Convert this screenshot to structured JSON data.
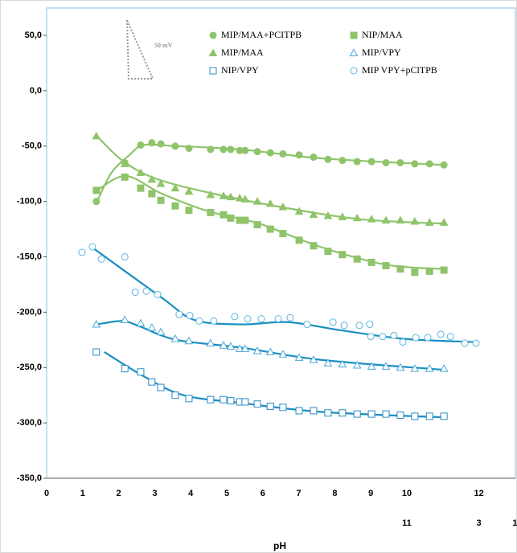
{
  "chart_data": {
    "type": "scatter",
    "x_label": "pH",
    "scale_label": "50 mV",
    "xlim": [
      0,
      13
    ],
    "ylim": [
      -350,
      75
    ],
    "xticks": [
      0,
      1,
      2,
      3,
      4,
      5,
      6,
      7,
      8,
      9,
      10,
      12
    ],
    "xticks_lower": [
      {
        "value": 10,
        "label": "11"
      },
      {
        "value": 12,
        "label": "3"
      },
      {
        "value": 13,
        "label": "1"
      }
    ],
    "yticks": [
      {
        "value": 50,
        "label": "50,0"
      },
      {
        "value": 0,
        "label": "0,0"
      },
      {
        "value": -50,
        "label": "-50,0"
      },
      {
        "value": -100,
        "label": "-100,0"
      },
      {
        "value": -150,
        "label": "-150,0"
      },
      {
        "value": -200,
        "label": "-200,0"
      },
      {
        "value": -250,
        "label": "-250,0"
      },
      {
        "value": -300,
        "label": "-300,0"
      },
      {
        "value": -350,
        "label": "-350,0"
      }
    ],
    "series": [
      {
        "name": "MIP/MAA+PCITPB",
        "color": "#8fc46a",
        "marker": "circle",
        "filled": true,
        "fit_color": "#8fc46a",
        "x": [
          1.38,
          2.17,
          2.61,
          2.92,
          3.17,
          3.57,
          3.95,
          4.55,
          4.91,
          5.11,
          5.36,
          5.51,
          5.85,
          6.21,
          6.56,
          7.01,
          7.41,
          7.81,
          8.21,
          8.62,
          9.02,
          9.42,
          9.82,
          10.22,
          10.63,
          11.03
        ],
        "values": [
          -100,
          -65,
          -49,
          -47,
          -48,
          -50,
          -52,
          -53,
          -53,
          -53,
          -54,
          -54,
          -55,
          -56,
          -57,
          -58,
          -60,
          -62,
          -63,
          -64,
          -64,
          -65,
          -65,
          -66,
          -66,
          -67
        ],
        "fit_x": [
          1.4,
          1.8,
          2.3,
          2.7,
          3.6,
          5.4,
          7.6,
          11.0
        ],
        "fit_values": [
          -100,
          -74,
          -58,
          -49,
          -50,
          -53,
          -61,
          -67
        ]
      },
      {
        "name": "NIP/MAA",
        "color": "#8fc46a",
        "marker": "square",
        "filled": true,
        "fit_color": "#8fc46a",
        "x": [
          1.38,
          2.17,
          2.61,
          2.92,
          3.17,
          3.57,
          3.95,
          4.55,
          4.91,
          5.11,
          5.36,
          5.51,
          5.85,
          6.21,
          6.56,
          7.01,
          7.41,
          7.81,
          8.21,
          8.62,
          9.02,
          9.42,
          9.82,
          10.22,
          10.63,
          11.03
        ],
        "values": [
          -90,
          -78,
          -88,
          -93,
          -99,
          -104,
          -108,
          -110,
          -112,
          -115,
          -117,
          -117,
          -121,
          -125,
          -129,
          -135,
          -140,
          -145,
          -148,
          -152,
          -155,
          -158,
          -161,
          -164,
          -163,
          -162
        ],
        "fit_x": [
          1.4,
          2.2,
          3.2,
          4.5,
          5.9,
          7.6,
          9.4,
          11.0
        ],
        "fit_values": [
          -90,
          -77,
          -93,
          -109,
          -120,
          -141,
          -157,
          -161
        ]
      },
      {
        "name": "MIP/MAA",
        "color": "#8fc46a",
        "marker": "triangle",
        "filled": true,
        "fit_color": "#8fc46a",
        "x": [
          1.38,
          2.17,
          2.61,
          2.92,
          3.17,
          3.57,
          3.95,
          4.55,
          4.91,
          5.11,
          5.36,
          5.51,
          5.85,
          6.21,
          6.56,
          7.01,
          7.41,
          7.81,
          8.21,
          8.62,
          9.02,
          9.42,
          9.82,
          10.22,
          10.63,
          11.03
        ],
        "values": [
          -41,
          -66,
          -74,
          -80,
          -84,
          -88,
          -91,
          -94,
          -95,
          -96,
          -97,
          -98,
          -100,
          -102,
          -105,
          -109,
          -112,
          -113,
          -114,
          -115,
          -116,
          -117,
          -117,
          -118,
          -119,
          -119
        ],
        "fit_x": [
          1.4,
          2.1,
          3.0,
          4.5,
          6.5,
          8.7,
          11.0
        ],
        "fit_values": [
          -41,
          -63,
          -79,
          -92,
          -105,
          -116,
          -120
        ]
      },
      {
        "name": "MIP/VPY",
        "color": "#4aa8d8",
        "marker": "triangle",
        "filled": false,
        "fit_color": "#1a8fc0",
        "x": [
          1.38,
          2.17,
          2.61,
          2.92,
          3.17,
          3.57,
          3.95,
          4.55,
          4.91,
          5.11,
          5.36,
          5.51,
          5.85,
          6.21,
          6.56,
          7.01,
          7.41,
          7.81,
          8.21,
          8.62,
          9.02,
          9.42,
          9.82,
          10.22,
          10.63,
          11.03
        ],
        "values": [
          -211,
          -207,
          -210,
          -214,
          -218,
          -224,
          -226,
          -228,
          -230,
          -231,
          -233,
          -233,
          -235,
          -236,
          -238,
          -241,
          -243,
          -246,
          -247,
          -248,
          -249,
          -249,
          -250,
          -251,
          -251,
          -251
        ],
        "fit_x": [
          1.4,
          2.1,
          2.6,
          3.6,
          5.4,
          7.6,
          11.0
        ],
        "fit_values": [
          -211,
          -208,
          -213,
          -225,
          -232,
          -243,
          -252
        ]
      },
      {
        "name": "NIP/VPY",
        "color": "#2a8cc4",
        "marker": "square",
        "filled": false,
        "fit_color": "#1a8fc0",
        "x": [
          1.38,
          2.17,
          2.61,
          2.92,
          3.17,
          3.57,
          3.95,
          4.55,
          4.91,
          5.11,
          5.36,
          5.51,
          5.85,
          6.21,
          6.56,
          7.01,
          7.41,
          7.81,
          8.21,
          8.62,
          9.02,
          9.42,
          9.82,
          10.22,
          10.63,
          11.03
        ],
        "values": [
          -236,
          -251,
          -254,
          -263,
          -268,
          -275,
          -278,
          -279,
          -279,
          -280,
          -281,
          -281,
          -283,
          -285,
          -286,
          -289,
          -289,
          -291,
          -291,
          -292,
          -292,
          -292,
          -293,
          -294,
          -294,
          -294
        ],
        "fit_x": [
          1.6,
          2.7,
          3.8,
          5.4,
          7.6,
          11.0
        ],
        "fit_values": [
          -236,
          -258,
          -275,
          -282,
          -290,
          -295
        ]
      },
      {
        "name": "MIP VPY+pClTPB",
        "color": "#5bb6e0",
        "marker": "circle",
        "filled": false,
        "fit_color": "#1a8fc0",
        "x": [
          0.98,
          1.27,
          1.52,
          2.17,
          2.46,
          2.77,
          3.08,
          3.68,
          3.97,
          4.24,
          4.64,
          5.22,
          5.58,
          5.96,
          6.43,
          6.76,
          7.23,
          7.95,
          8.26,
          8.68,
          8.97,
          9.0,
          9.33,
          9.64,
          9.89,
          10.25,
          10.58,
          10.94,
          11.21,
          11.61,
          11.92
        ],
        "values": [
          -146,
          -141,
          -152,
          -150,
          -182,
          -181,
          -184,
          -202,
          -203,
          -208,
          -208,
          -204,
          -206,
          -206,
          -206,
          -205,
          -211,
          -209,
          -212,
          -212,
          -211,
          -222,
          -222,
          -221,
          -227,
          -223,
          -223,
          -220,
          -222,
          -228,
          -228
        ],
        "fit_x": [
          1.2,
          3.2,
          4.1,
          5.4,
          6.7,
          8.1,
          9.9,
          11.9
        ],
        "fit_values": [
          -140,
          -187,
          -207,
          -211,
          -209,
          -216,
          -224,
          -227
        ]
      }
    ]
  }
}
